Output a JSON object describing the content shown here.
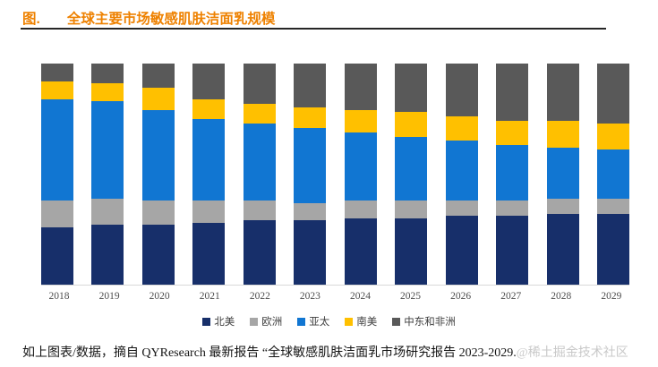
{
  "header": {
    "prefix": "图.",
    "title": "全球主要市场敏感肌肤洁面乳规模"
  },
  "theme": {
    "title_color": "#ee8100",
    "rule_color": "#262626",
    "baseline_color": "#d9d9d9",
    "axis_label_color": "#4d4d4d",
    "watermark_color": "#c9c9c9"
  },
  "chart_data": {
    "type": "bar",
    "stacked": true,
    "title": "全球主要市场敏感肌肤洁面乳规模",
    "categories": [
      "2018",
      "2019",
      "2020",
      "2021",
      "2022",
      "2023",
      "2024",
      "2025",
      "2026",
      "2027",
      "2028",
      "2029"
    ],
    "series": [
      {
        "name": "北美",
        "color": "#172f6a",
        "values": [
          26,
          27,
          27,
          28,
          29,
          29,
          30,
          30,
          31,
          31,
          32,
          32
        ]
      },
      {
        "name": "欧洲",
        "color": "#a6a6a6",
        "values": [
          12,
          12,
          11,
          10,
          9,
          8,
          8,
          8,
          7,
          7,
          7,
          7
        ]
      },
      {
        "name": "亚太",
        "color": "#1176d2",
        "values": [
          46,
          44,
          41,
          37,
          35,
          34,
          31,
          29,
          27,
          25,
          23,
          22
        ]
      },
      {
        "name": "南美",
        "color": "#ffc000",
        "values": [
          8,
          8,
          10,
          9,
          9,
          9,
          10,
          11,
          11,
          11,
          12,
          12
        ]
      },
      {
        "name": "中东和非洲",
        "color": "#595959",
        "values": [
          8,
          9,
          11,
          16,
          18,
          20,
          21,
          22,
          24,
          26,
          26,
          27
        ]
      }
    ],
    "xlabel": "",
    "ylabel": "",
    "ylim": [
      0,
      100
    ],
    "units": "percent share (no y-axis shown)",
    "grid": false,
    "legend_position": "bottom"
  },
  "footer": {
    "text": "如上图表/数据，摘自 QYResearch 最新报告 “全球敏感肌肤洁面乳市场研究报告 2023-2029.",
    "watermark": "@稀土掘金技术社区"
  }
}
